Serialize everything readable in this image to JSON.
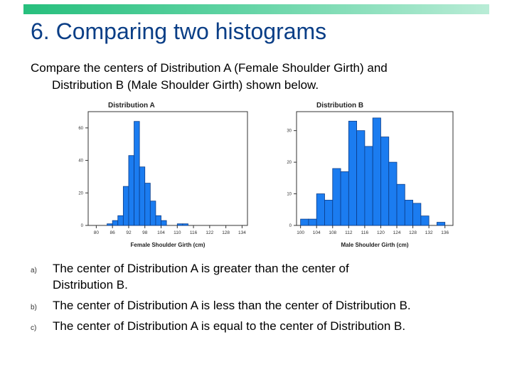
{
  "slide": {
    "title": "6. Comparing two histograms",
    "prompt_line1": "Compare the centers of Distribution A (Female Shoulder Girth) and",
    "prompt_line2": "Distribution B (Male Shoulder Girth) shown below.",
    "answers": [
      {
        "letter": "a)",
        "line1": "The center of Distribution A is greater than the center of",
        "line2": "Distribution B."
      },
      {
        "letter": "b)",
        "line1": "The center of Distribution A is less than the center of Distribution B.",
        "line2": ""
      },
      {
        "letter": "c)",
        "line1": "The center of Distribution A is equal to the center of Distribution B.",
        "line2": ""
      }
    ],
    "colors": {
      "title": "#0a3e86",
      "bar": "#1b7cf0",
      "bar_stroke": "#0b3d8a",
      "accent_bar": "#27bf7d"
    }
  },
  "chart_data": [
    {
      "type": "bar",
      "title": "Distribution A",
      "xlabel": "Female Shoulder Girth (cm)",
      "ylabel": "",
      "bin_width": 2,
      "bin_start": 84,
      "values": [
        1,
        3,
        6,
        24,
        43,
        64,
        36,
        26,
        15,
        6,
        3,
        0,
        0,
        1,
        1,
        0
      ],
      "x_ticks": [
        "80",
        "86",
        "92",
        "98",
        "104",
        "110",
        "116",
        "122",
        "128",
        "134"
      ],
      "x_tick_values": [
        80,
        86,
        92,
        98,
        104,
        110,
        116,
        122,
        128,
        134
      ],
      "xlim": [
        77,
        136
      ],
      "y_ticks": [
        "0",
        "20",
        "40",
        "60"
      ],
      "y_tick_values": [
        0,
        20,
        40,
        60
      ],
      "ylim": [
        0,
        70
      ],
      "grid": false
    },
    {
      "type": "bar",
      "title": "Distribution B",
      "xlabel": "Male Shoulder Girth (cm)",
      "ylabel": "",
      "bin_width": 2,
      "bin_start": 100,
      "values": [
        2,
        2,
        10,
        8,
        18,
        17,
        33,
        30,
        25,
        34,
        28,
        20,
        13,
        8,
        7,
        3,
        0,
        1
      ],
      "x_ticks": [
        "100",
        "104",
        "108",
        "112",
        "116",
        "120",
        "124",
        "128",
        "132",
        "136"
      ],
      "x_tick_values": [
        100,
        104,
        108,
        112,
        116,
        120,
        124,
        128,
        132,
        136
      ],
      "xlim": [
        99,
        138
      ],
      "y_ticks": [
        "0",
        "10",
        "20",
        "30"
      ],
      "y_tick_values": [
        0,
        10,
        20,
        30
      ],
      "ylim": [
        0,
        36
      ],
      "grid": false
    }
  ]
}
